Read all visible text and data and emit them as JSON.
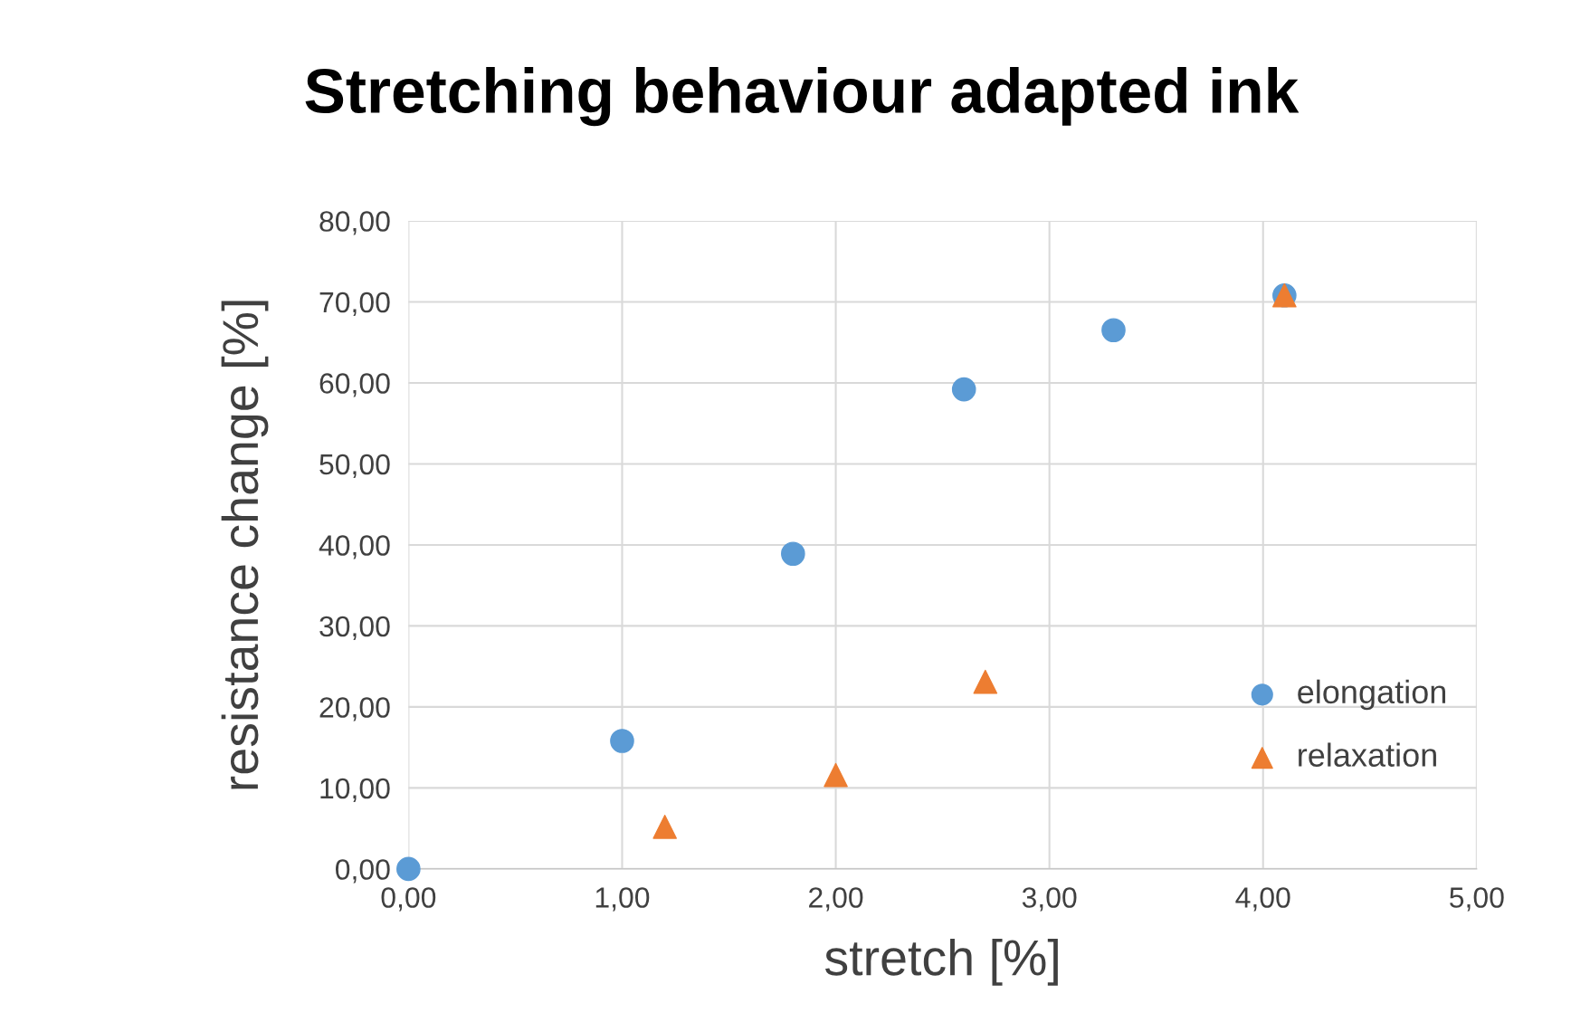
{
  "chart_data": {
    "type": "scatter",
    "title": "Stretching behaviour adapted ink",
    "xlabel": "stretch [%]",
    "ylabel": "resistance change [%]",
    "series": [
      {
        "name": "elongation",
        "color": "#5b9bd5",
        "marker": "circle",
        "x": [
          0.0,
          1.0,
          1.8,
          2.6,
          3.3,
          4.1
        ],
        "values": [
          0.0,
          15.8,
          38.9,
          59.2,
          66.5,
          70.8
        ]
      },
      {
        "name": "relaxation",
        "color": "#ed7d31",
        "marker": "triangle",
        "x": [
          1.2,
          2.0,
          2.7,
          4.1
        ],
        "values": [
          5.2,
          11.6,
          23.1,
          70.8
        ]
      }
    ],
    "xlim": [
      0,
      5
    ],
    "ylim": [
      0,
      80
    ],
    "xticks": [
      {
        "value": 0,
        "label": "0,00"
      },
      {
        "value": 1,
        "label": "1,00"
      },
      {
        "value": 2,
        "label": "2,00"
      },
      {
        "value": 3,
        "label": "3,00"
      },
      {
        "value": 4,
        "label": "4,00"
      },
      {
        "value": 5,
        "label": "5,00"
      }
    ],
    "yticks": [
      {
        "value": 0,
        "label": "0,00"
      },
      {
        "value": 10,
        "label": "10,00"
      },
      {
        "value": 20,
        "label": "20,00"
      },
      {
        "value": 30,
        "label": "30,00"
      },
      {
        "value": 40,
        "label": "40,00"
      },
      {
        "value": 50,
        "label": "50,00"
      },
      {
        "value": 60,
        "label": "60,00"
      },
      {
        "value": 70,
        "label": "70,00"
      },
      {
        "value": 80,
        "label": "80,00"
      }
    ],
    "grid": true,
    "legend": "right"
  }
}
